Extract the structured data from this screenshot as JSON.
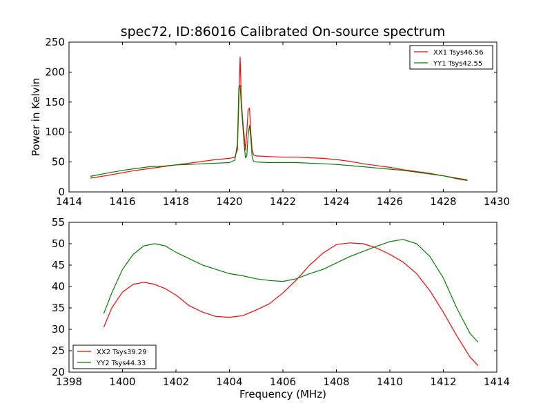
{
  "figure": {
    "title": "spec72, ID:86016 Calibrated On-source spectrum"
  },
  "chart_data": [
    {
      "type": "line",
      "title": "spec72, ID:86016 Calibrated On-source spectrum",
      "xlabel": "",
      "ylabel": "Power in Kelvin",
      "xlim": [
        1414,
        1430
      ],
      "ylim": [
        0,
        250
      ],
      "xticks": [
        "1414",
        "1416",
        "1418",
        "1420",
        "1422",
        "1424",
        "1426",
        "1428",
        "1430"
      ],
      "yticks": [
        "0",
        "50",
        "100",
        "150",
        "200",
        "250"
      ],
      "grid": false,
      "legend_position": "top-right",
      "series": [
        {
          "name": "XX1 Tsys46.56",
          "color": "#ff0000",
          "x": [
            1414.8,
            1415.5,
            1416.0,
            1416.5,
            1417.0,
            1417.5,
            1418.0,
            1418.5,
            1419.0,
            1419.5,
            1420.0,
            1420.2,
            1420.3,
            1420.35,
            1420.4,
            1420.45,
            1420.5,
            1420.55,
            1420.6,
            1420.65,
            1420.7,
            1420.75,
            1420.8,
            1420.85,
            1420.9,
            1421.0,
            1421.5,
            1422.0,
            1422.5,
            1423.0,
            1423.5,
            1424.0,
            1424.5,
            1425.0,
            1425.5,
            1426.0,
            1426.5,
            1427.0,
            1427.5,
            1428.0,
            1428.5,
            1428.9
          ],
          "values": [
            23,
            28,
            32,
            36,
            39,
            42,
            45,
            48,
            51,
            54,
            56,
            58,
            70,
            150,
            225,
            150,
            118,
            95,
            70,
            100,
            136,
            140,
            100,
            70,
            62,
            60,
            59,
            58,
            58,
            57,
            56,
            54,
            51,
            47,
            44,
            41,
            37,
            34,
            31,
            27,
            22,
            19
          ]
        },
        {
          "name": "YY1 Tsys42.55",
          "color": "#008000",
          "x": [
            1414.8,
            1415.5,
            1416.0,
            1416.5,
            1417.0,
            1417.5,
            1418.0,
            1418.5,
            1419.0,
            1419.5,
            1420.0,
            1420.2,
            1420.3,
            1420.35,
            1420.4,
            1420.45,
            1420.5,
            1420.55,
            1420.6,
            1420.65,
            1420.7,
            1420.75,
            1420.8,
            1420.85,
            1420.9,
            1421.0,
            1421.5,
            1422.0,
            1422.5,
            1423.0,
            1423.5,
            1424.0,
            1424.5,
            1425.0,
            1425.5,
            1426.0,
            1426.5,
            1427.0,
            1427.5,
            1428.0,
            1428.5,
            1428.9
          ],
          "values": [
            26,
            32,
            36,
            39,
            42,
            43,
            45,
            46,
            47,
            48,
            49,
            53,
            80,
            175,
            178,
            140,
            110,
            80,
            57,
            60,
            95,
            111,
            90,
            58,
            51,
            50,
            49,
            49,
            49,
            48,
            47,
            46,
            44,
            42,
            40,
            38,
            36,
            33,
            30,
            27,
            23,
            20
          ]
        }
      ]
    },
    {
      "type": "line",
      "title": "",
      "xlabel": "Frequency (MHz)",
      "ylabel": "",
      "xlim": [
        1398,
        1414
      ],
      "ylim": [
        20,
        55
      ],
      "xticks": [
        "1398",
        "1400",
        "1402",
        "1404",
        "1406",
        "1408",
        "1410",
        "1412",
        "1414"
      ],
      "yticks": [
        "20",
        "25",
        "30",
        "35",
        "40",
        "45",
        "50",
        "55"
      ],
      "grid": false,
      "legend_position": "bottom-left",
      "series": [
        {
          "name": "XX2 Tsys39.29",
          "color": "#ff0000",
          "x": [
            1399.3,
            1399.6,
            1400.0,
            1400.4,
            1400.8,
            1401.2,
            1401.6,
            1402.0,
            1402.5,
            1403.0,
            1403.5,
            1404.0,
            1404.5,
            1405.0,
            1405.5,
            1406.0,
            1406.5,
            1407.0,
            1407.5,
            1408.0,
            1408.5,
            1409.0,
            1409.5,
            1410.0,
            1410.5,
            1411.0,
            1411.5,
            1412.0,
            1412.5,
            1413.0,
            1413.3
          ],
          "values": [
            30.5,
            35,
            38.7,
            40.5,
            41,
            40.5,
            39.5,
            38,
            35.5,
            34,
            33,
            32.8,
            33.2,
            34.5,
            36,
            38.5,
            41.5,
            45,
            47.8,
            49.8,
            50.2,
            50,
            49,
            47.5,
            45.7,
            43,
            39,
            34,
            28.5,
            23.5,
            21.5
          ]
        },
        {
          "name": "YY2 Tsys44.33",
          "color": "#008000",
          "x": [
            1399.3,
            1399.6,
            1400.0,
            1400.4,
            1400.8,
            1401.2,
            1401.6,
            1402.0,
            1402.5,
            1403.0,
            1403.5,
            1404.0,
            1404.5,
            1405.0,
            1405.5,
            1406.0,
            1406.5,
            1407.0,
            1407.5,
            1408.0,
            1408.5,
            1409.0,
            1409.5,
            1410.0,
            1410.5,
            1411.0,
            1411.5,
            1412.0,
            1412.5,
            1413.0,
            1413.3
          ],
          "values": [
            33.7,
            38.5,
            44,
            47.5,
            49.5,
            50,
            49.5,
            48,
            46.5,
            45,
            44,
            43,
            42.5,
            41.8,
            41.4,
            41.2,
            41.8,
            43,
            44,
            45.5,
            47,
            48.2,
            49.4,
            50.5,
            51,
            50,
            47,
            42,
            35,
            29,
            27
          ]
        }
      ]
    }
  ]
}
